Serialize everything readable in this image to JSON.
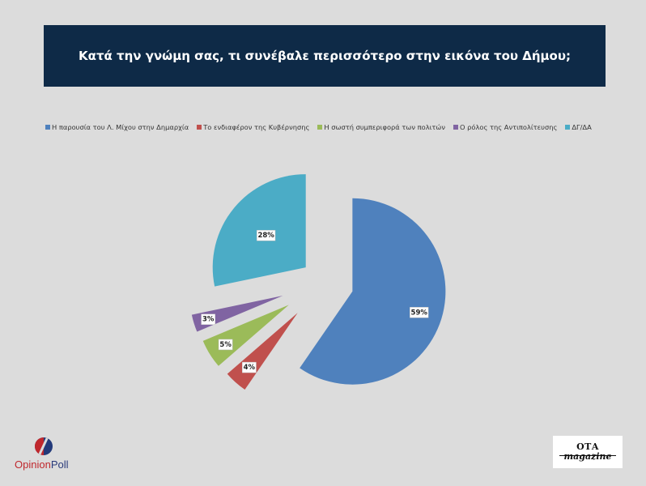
{
  "title": "Κατά την γνώμη σας, τι συνέβαλε περισσότερο στην εικόνα του Δήμου;",
  "chart_data": {
    "type": "pie",
    "title": "Κατά την γνώμη σας, τι συνέβαλε περισσότερο στην εικόνα του Δήμου;",
    "legend_position": "top",
    "slices": [
      {
        "label": "Η παρουσία του Λ. Μίχου στην Δημαρχία",
        "value": 59,
        "value_label": "59%",
        "color": "#4f81bd"
      },
      {
        "label": "Το ενδιαφέρον της Κυβέρνησης",
        "value": 4,
        "value_label": "4%",
        "color": "#c0504d"
      },
      {
        "label": "Η σωστή συμπεριφορά των πολιτών",
        "value": 5,
        "value_label": "5%",
        "color": "#9bbb59"
      },
      {
        "label": "Ο ρόλος της Αντιπολίτευσης",
        "value": 3,
        "value_label": "3%",
        "color": "#8064a2"
      },
      {
        "label": "ΔΓ/ΔΑ",
        "value": 28,
        "value_label": "28%",
        "color": "#4bacc6"
      }
    ]
  },
  "logos": {
    "opinion_poll": {
      "part1": "Opinion",
      "part2": "Poll"
    },
    "ota": {
      "line1": "ΟΤΑ",
      "line2": "magazine"
    }
  }
}
